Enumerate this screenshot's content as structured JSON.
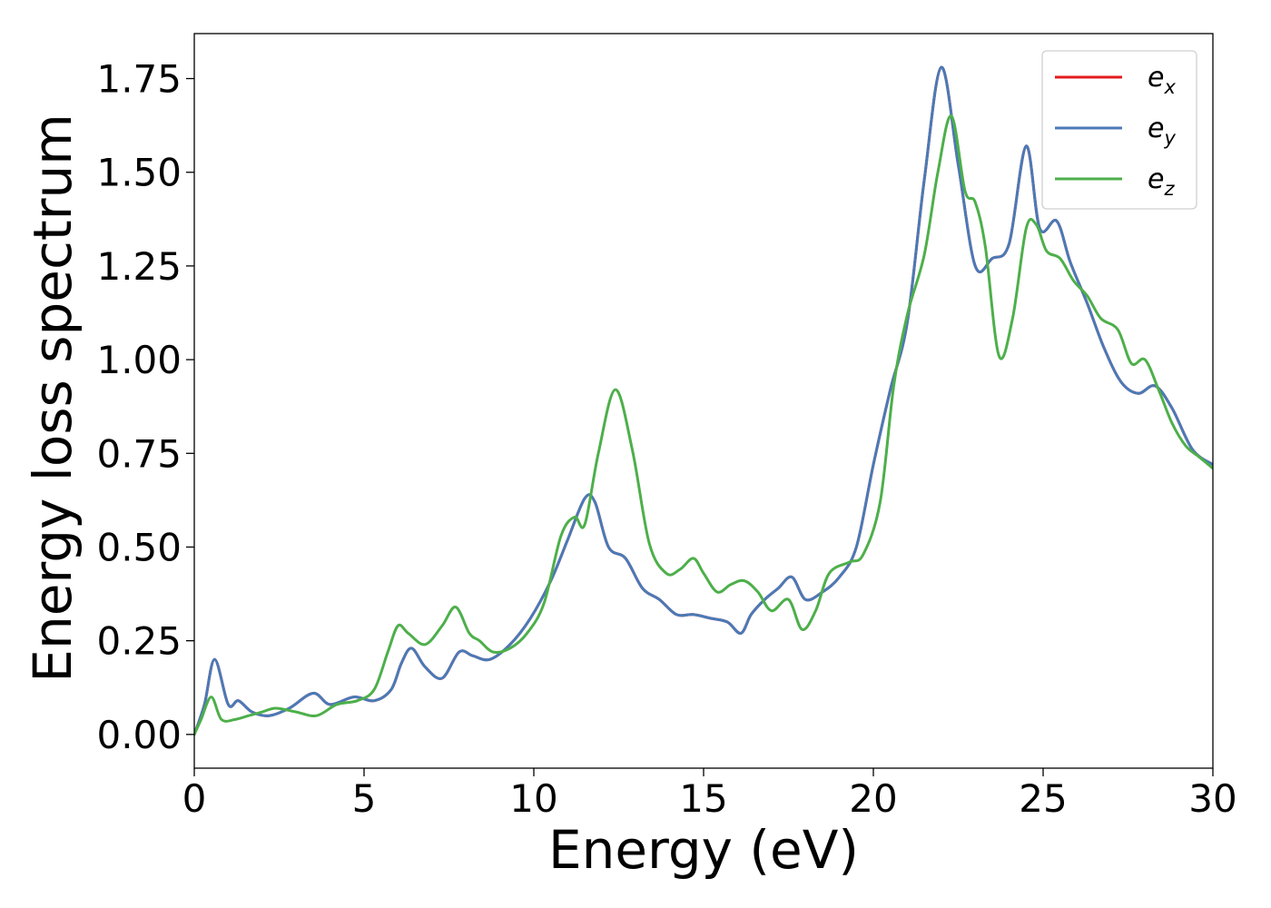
{
  "chart_data": {
    "type": "line",
    "title": "",
    "xlabel": "Energy (eV)",
    "ylabel": "Energy loss spectrum",
    "xlim": [
      0,
      30
    ],
    "ylim": [
      -0.09,
      1.87
    ],
    "xticks": [
      0,
      5,
      10,
      15,
      20,
      25,
      30
    ],
    "xtick_labels": [
      "0",
      "5",
      "10",
      "15",
      "20",
      "25",
      "30"
    ],
    "yticks": [
      0.0,
      0.25,
      0.5,
      0.75,
      1.0,
      1.25,
      1.5,
      1.75
    ],
    "ytick_labels": [
      "0.00",
      "0.25",
      "0.50",
      "0.75",
      "1.00",
      "1.25",
      "1.50",
      "1.75"
    ],
    "grid": false,
    "legend_position": "top-right",
    "series": [
      {
        "name": "e",
        "subscript": "x",
        "color": "#e41a1c",
        "x": [
          0,
          0.3,
          0.6,
          1.0,
          1.3,
          1.7,
          2.2,
          2.8,
          3.5,
          4.0,
          4.7,
          5.3,
          5.8,
          6.1,
          6.4,
          6.8,
          7.3,
          7.8,
          8.2,
          8.7,
          9.3,
          9.9,
          10.5,
          11.0,
          11.5,
          11.8,
          12.2,
          12.7,
          13.2,
          13.7,
          14.2,
          14.7,
          15.2,
          15.7,
          16.1,
          16.4,
          16.8,
          17.2,
          17.6,
          18.0,
          18.5,
          19.0,
          19.5,
          20.0,
          20.5,
          21.0,
          21.5,
          22.0,
          22.5,
          23.0,
          23.5,
          24.0,
          24.5,
          24.9,
          25.4,
          25.8,
          26.3,
          26.8,
          27.3,
          27.8,
          28.3,
          28.8,
          29.4,
          30.0
        ],
        "y": [
          0.0,
          0.08,
          0.2,
          0.08,
          0.09,
          0.06,
          0.05,
          0.07,
          0.11,
          0.08,
          0.1,
          0.09,
          0.12,
          0.19,
          0.23,
          0.18,
          0.15,
          0.22,
          0.21,
          0.2,
          0.24,
          0.31,
          0.41,
          0.52,
          0.63,
          0.62,
          0.5,
          0.47,
          0.39,
          0.36,
          0.32,
          0.32,
          0.31,
          0.3,
          0.27,
          0.32,
          0.36,
          0.39,
          0.42,
          0.36,
          0.38,
          0.42,
          0.5,
          0.72,
          0.92,
          1.1,
          1.48,
          1.78,
          1.52,
          1.25,
          1.27,
          1.31,
          1.57,
          1.35,
          1.37,
          1.26,
          1.15,
          1.03,
          0.94,
          0.91,
          0.93,
          0.87,
          0.76,
          0.72
        ]
      },
      {
        "name": "e",
        "subscript": "y",
        "color": "#4a7ab7",
        "x": [
          0,
          0.3,
          0.6,
          1.0,
          1.3,
          1.7,
          2.2,
          2.8,
          3.5,
          4.0,
          4.7,
          5.3,
          5.8,
          6.1,
          6.4,
          6.8,
          7.3,
          7.8,
          8.2,
          8.7,
          9.3,
          9.9,
          10.5,
          11.0,
          11.5,
          11.8,
          12.2,
          12.7,
          13.2,
          13.7,
          14.2,
          14.7,
          15.2,
          15.7,
          16.1,
          16.4,
          16.8,
          17.2,
          17.6,
          18.0,
          18.5,
          19.0,
          19.5,
          20.0,
          20.5,
          21.0,
          21.5,
          22.0,
          22.5,
          23.0,
          23.5,
          24.0,
          24.5,
          24.9,
          25.4,
          25.8,
          26.3,
          26.8,
          27.3,
          27.8,
          28.3,
          28.8,
          29.4,
          30.0
        ],
        "y": [
          0.0,
          0.08,
          0.2,
          0.08,
          0.09,
          0.06,
          0.05,
          0.07,
          0.11,
          0.08,
          0.1,
          0.09,
          0.12,
          0.19,
          0.23,
          0.18,
          0.15,
          0.22,
          0.21,
          0.2,
          0.24,
          0.31,
          0.41,
          0.52,
          0.63,
          0.62,
          0.5,
          0.47,
          0.39,
          0.36,
          0.32,
          0.32,
          0.31,
          0.3,
          0.27,
          0.32,
          0.36,
          0.39,
          0.42,
          0.36,
          0.38,
          0.42,
          0.5,
          0.72,
          0.92,
          1.1,
          1.48,
          1.78,
          1.52,
          1.25,
          1.27,
          1.31,
          1.57,
          1.35,
          1.37,
          1.26,
          1.15,
          1.03,
          0.94,
          0.91,
          0.93,
          0.87,
          0.76,
          0.72
        ]
      },
      {
        "name": "e",
        "subscript": "z",
        "color": "#4daf4a",
        "x": [
          0,
          0.2,
          0.5,
          0.8,
          1.2,
          1.6,
          2.0,
          2.4,
          3.0,
          3.6,
          4.2,
          4.8,
          5.3,
          5.7,
          6.0,
          6.3,
          6.8,
          7.3,
          7.7,
          8.1,
          8.4,
          8.8,
          9.3,
          9.8,
          10.3,
          10.8,
          11.2,
          11.5,
          11.9,
          12.4,
          12.9,
          13.4,
          13.9,
          14.3,
          14.7,
          15.0,
          15.4,
          15.8,
          16.2,
          16.6,
          17.0,
          17.5,
          17.9,
          18.3,
          18.7,
          19.3,
          19.7,
          20.2,
          20.6,
          21.0,
          21.5,
          21.9,
          22.3,
          22.7,
          23.0,
          23.3,
          23.7,
          24.1,
          24.5,
          24.8,
          25.1,
          25.5,
          25.9,
          26.3,
          26.7,
          27.2,
          27.6,
          28.0,
          28.4,
          28.8,
          29.2,
          29.6,
          30.0
        ],
        "y": [
          0.0,
          0.04,
          0.1,
          0.04,
          0.04,
          0.05,
          0.06,
          0.07,
          0.06,
          0.05,
          0.08,
          0.09,
          0.12,
          0.22,
          0.29,
          0.27,
          0.24,
          0.29,
          0.34,
          0.27,
          0.25,
          0.22,
          0.23,
          0.27,
          0.35,
          0.53,
          0.58,
          0.56,
          0.75,
          0.92,
          0.76,
          0.51,
          0.43,
          0.44,
          0.47,
          0.43,
          0.38,
          0.4,
          0.41,
          0.38,
          0.33,
          0.36,
          0.28,
          0.33,
          0.43,
          0.46,
          0.48,
          0.62,
          0.93,
          1.12,
          1.28,
          1.5,
          1.65,
          1.45,
          1.42,
          1.3,
          1.01,
          1.11,
          1.35,
          1.36,
          1.29,
          1.27,
          1.21,
          1.17,
          1.11,
          1.08,
          0.99,
          1.0,
          0.92,
          0.83,
          0.77,
          0.74,
          0.71
        ]
      }
    ]
  }
}
